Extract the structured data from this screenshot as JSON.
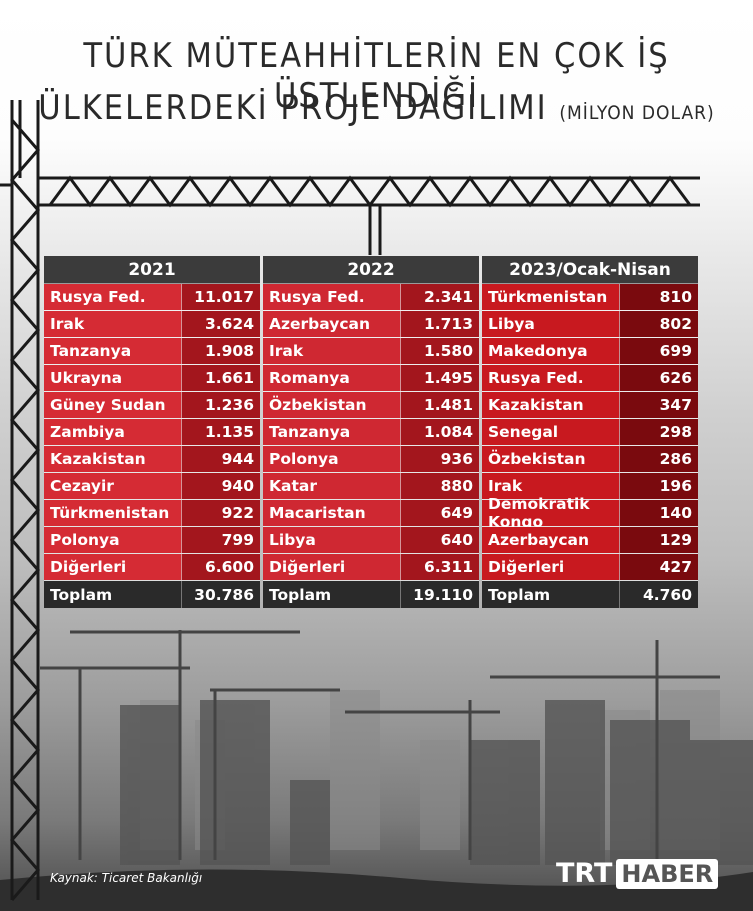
{
  "title": {
    "line1": "TÜRK MÜTEAHHİTLERİN EN ÇOK İŞ ÜSTLENDİĞİ",
    "line2": "ÜLKELERDEKİ PROJE DAĞILIMI",
    "unit": "(MİLYON DOLAR)"
  },
  "chart_data": {
    "type": "table",
    "title": "TÜRK MÜTEAHHİTLERİN EN ÇOK İŞ ÜSTLENDİĞİ ÜLKELERDEKİ PROJE DAĞILIMI",
    "unit": "(MİLYON DOLAR)",
    "columns": [
      {
        "period": "2021",
        "rows": [
          {
            "country": "Rusya Fed.",
            "value": "11.017"
          },
          {
            "country": "Irak",
            "value": "3.624"
          },
          {
            "country": "Tanzanya",
            "value": "1.908"
          },
          {
            "country": "Ukrayna",
            "value": "1.661"
          },
          {
            "country": "Güney Sudan",
            "value": "1.236"
          },
          {
            "country": "Zambiya",
            "value": "1.135"
          },
          {
            "country": "Kazakistan",
            "value": "944"
          },
          {
            "country": "Cezayir",
            "value": "940"
          },
          {
            "country": "Türkmenistan",
            "value": "922"
          },
          {
            "country": "Polonya",
            "value": "799"
          },
          {
            "country": "Diğerleri",
            "value": "6.600"
          }
        ],
        "total_label": "Toplam",
        "total": "30.786"
      },
      {
        "period": "2022",
        "rows": [
          {
            "country": "Rusya Fed.",
            "value": "2.341"
          },
          {
            "country": "Azerbaycan",
            "value": "1.713"
          },
          {
            "country": "Irak",
            "value": "1.580"
          },
          {
            "country": "Romanya",
            "value": "1.495"
          },
          {
            "country": "Özbekistan",
            "value": "1.481"
          },
          {
            "country": "Tanzanya",
            "value": "1.084"
          },
          {
            "country": "Polonya",
            "value": "936"
          },
          {
            "country": "Katar",
            "value": "880"
          },
          {
            "country": "Macaristan",
            "value": "649"
          },
          {
            "country": "Libya",
            "value": "640"
          },
          {
            "country": "Diğerleri",
            "value": "6.311"
          }
        ],
        "total_label": "Toplam",
        "total": "19.110"
      },
      {
        "period": "2023/Ocak-Nisan",
        "rows": [
          {
            "country": "Türkmenistan",
            "value": "810"
          },
          {
            "country": "Libya",
            "value": "802"
          },
          {
            "country": "Makedonya",
            "value": "699"
          },
          {
            "country": "Rusya Fed.",
            "value": "626"
          },
          {
            "country": "Kazakistan",
            "value": "347"
          },
          {
            "country": "Senegal",
            "value": "298"
          },
          {
            "country": "Özbekistan",
            "value": "286"
          },
          {
            "country": "Irak",
            "value": "196"
          },
          {
            "country": "Demokratik Kongo",
            "value": "140"
          },
          {
            "country": "Azerbaycan",
            "value": "129"
          },
          {
            "country": "Diğerleri",
            "value": "427"
          }
        ],
        "total_label": "Toplam",
        "total": "4.760"
      }
    ]
  },
  "source": "Kaynak: Ticaret Bakanlığı",
  "logo": {
    "part1": "TRT",
    "part2": "HABER"
  },
  "colors": {
    "red_light": "#d52b34",
    "red_dark": "#a3161d",
    "header": "#3b3b3b",
    "total": "#2a2a2a"
  }
}
